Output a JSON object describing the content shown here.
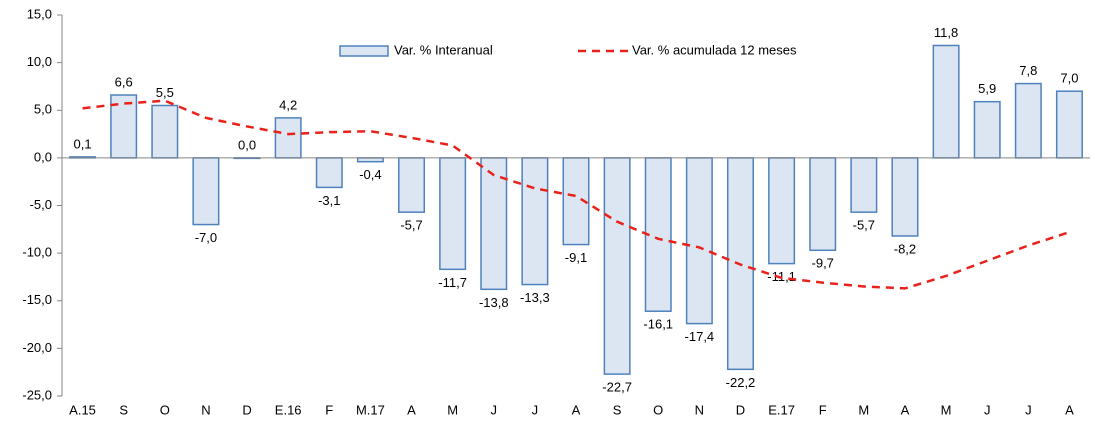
{
  "chart_data": {
    "type": "bar_line",
    "categories": [
      "A.15",
      "S",
      "O",
      "N",
      "D",
      "E.16",
      "F",
      "M.17",
      "A",
      "M",
      "J",
      "J",
      "A",
      "S",
      "O",
      "N",
      "D",
      "E.17",
      "F",
      "M",
      "A",
      "M",
      "J",
      "J",
      "A"
    ],
    "series": [
      {
        "name": "Var. % Interanual",
        "type": "bar",
        "color": "#dce6f2",
        "edge_color": "#4f81bd",
        "values": [
          0.1,
          6.6,
          5.5,
          -7.0,
          0.0,
          4.2,
          -3.1,
          -0.4,
          -5.7,
          -11.7,
          -13.8,
          -13.3,
          -9.1,
          -22.7,
          -16.1,
          -17.4,
          -22.2,
          -11.1,
          -9.7,
          -5.7,
          -8.2,
          11.8,
          5.9,
          7.8,
          7.0
        ],
        "value_labels": [
          "0,1",
          "6,6",
          "5,5",
          "-7,0",
          "0,0",
          "4,2",
          "-3,1",
          "-0,4",
          "-5,7",
          "-11,7",
          "-13,8",
          "-13,3",
          "-9,1",
          "-22,7",
          "-16,1",
          "-17,4",
          "-22,2",
          "-11,1",
          "-9,7",
          "-5,7",
          "-8,2",
          "11,8",
          "5,9",
          "7,8",
          "7,0"
        ]
      },
      {
        "name": "Var. % acumulada 12 meses",
        "type": "line",
        "color": "#e8221b",
        "dashed": true,
        "values": [
          5.2,
          5.7,
          6.0,
          4.2,
          3.3,
          2.5,
          2.7,
          2.8,
          2.1,
          1.3,
          -1.8,
          -3.2,
          -4.0,
          -6.7,
          -8.5,
          -9.4,
          -11.2,
          -12.6,
          -13.1,
          -13.5,
          -13.7,
          -12.4,
          -10.8,
          -9.2,
          -7.8
        ]
      }
    ],
    "ylim": [
      -25,
      15
    ],
    "yticks": [
      {
        "value": -25,
        "label": "-25,0"
      },
      {
        "value": -20,
        "label": "-20,0"
      },
      {
        "value": -15,
        "label": "-15,0"
      },
      {
        "value": -10,
        "label": "-10,0"
      },
      {
        "value": -5,
        "label": "-5,0"
      },
      {
        "value": 0,
        "label": "0,0"
      },
      {
        "value": 5,
        "label": "5,0"
      },
      {
        "value": 10,
        "label": "10,0"
      },
      {
        "value": 15,
        "label": "15,0"
      }
    ],
    "grid": false,
    "legend": "top"
  }
}
